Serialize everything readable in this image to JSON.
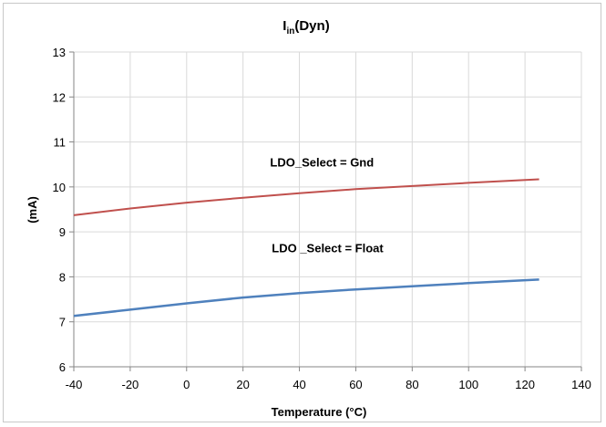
{
  "chart_data": {
    "type": "line",
    "title": {
      "main": "I",
      "subscript": "in",
      "suffix": "(Dyn)"
    },
    "xlabel": "Temperature (°C)",
    "ylabel": "(mA)",
    "xlim": [
      -40,
      140
    ],
    "ylim": [
      6,
      13
    ],
    "xticks": [
      -40,
      -20,
      0,
      20,
      40,
      60,
      80,
      100,
      120,
      140
    ],
    "yticks": [
      6,
      7,
      8,
      9,
      10,
      11,
      12,
      13
    ],
    "grid": true,
    "series": [
      {
        "name": "LDO_Select = Gnd",
        "color": "#c0504d",
        "x": [
          -40,
          -20,
          0,
          20,
          40,
          60,
          80,
          100,
          125
        ],
        "y": [
          9.37,
          9.52,
          9.65,
          9.76,
          9.86,
          9.95,
          10.02,
          10.09,
          10.17
        ]
      },
      {
        "name": "LDO _Select = Float",
        "color": "#4f81bd",
        "x": [
          -40,
          -20,
          0,
          20,
          40,
          60,
          80,
          100,
          125
        ],
        "y": [
          7.13,
          7.27,
          7.41,
          7.54,
          7.64,
          7.72,
          7.79,
          7.86,
          7.94
        ]
      }
    ],
    "annotations": [
      {
        "text": "LDO_Select = Gnd",
        "x": 48,
        "y": 10.45
      },
      {
        "text": "LDO _Select = Float",
        "x": 50,
        "y": 8.55
      }
    ]
  }
}
